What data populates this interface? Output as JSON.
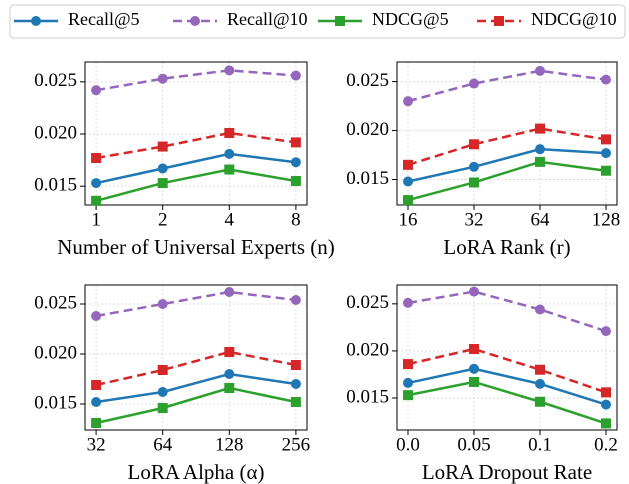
{
  "chart_data": [
    {
      "type": "line",
      "xlabel": "Number of Universal Experts (n)",
      "categories": [
        "1",
        "2",
        "4",
        "8"
      ],
      "series": [
        {
          "name": "Recall@5",
          "color": "#1f77b4",
          "linestyle": "solid",
          "marker": "circle",
          "values": [
            0.0153,
            0.0167,
            0.0181,
            0.0173
          ]
        },
        {
          "name": "Recall@10",
          "color": "#9467bd",
          "linestyle": "dashed",
          "marker": "circle",
          "values": [
            0.0242,
            0.0253,
            0.0261,
            0.0256
          ]
        },
        {
          "name": "NDCG@5",
          "color": "#2ca02c",
          "linestyle": "solid",
          "marker": "square",
          "values": [
            0.0136,
            0.0153,
            0.0166,
            0.0155
          ]
        },
        {
          "name": "NDCG@10",
          "color": "#d62728",
          "linestyle": "dashed",
          "marker": "square",
          "values": [
            0.0177,
            0.0188,
            0.0201,
            0.0192
          ]
        }
      ],
      "ylim": [
        0.0132,
        0.0269
      ],
      "yticks": [
        0.015,
        {
          "value": 0.02,
          "label": "0.020"
        },
        0.025
      ],
      "grid": true
    },
    {
      "type": "line",
      "xlabel": "LoRA Rank (r)",
      "categories": [
        "16",
        "32",
        "64",
        "128"
      ],
      "series": [
        {
          "name": "Recall@5",
          "color": "#1f77b4",
          "linestyle": "solid",
          "marker": "circle",
          "values": [
            0.0148,
            0.0163,
            0.0181,
            0.0177
          ]
        },
        {
          "name": "Recall@10",
          "color": "#9467bd",
          "linestyle": "dashed",
          "marker": "circle",
          "values": [
            0.023,
            0.0248,
            0.0261,
            0.0252
          ]
        },
        {
          "name": "NDCG@5",
          "color": "#2ca02c",
          "linestyle": "solid",
          "marker": "square",
          "values": [
            0.0129,
            0.0147,
            0.0168,
            0.0159
          ]
        },
        {
          "name": "NDCG@10",
          "color": "#d62728",
          "linestyle": "dashed",
          "marker": "square",
          "values": [
            0.0165,
            0.0186,
            0.0202,
            0.0191
          ]
        }
      ],
      "ylim": [
        0.0124,
        0.027
      ],
      "yticks": [
        0.015,
        {
          "value": 0.02,
          "label": "0.020"
        },
        0.025
      ],
      "grid": true
    },
    {
      "type": "line",
      "xlabel": "LoRA Alpha (α)",
      "categories": [
        "32",
        "64",
        "128",
        "256"
      ],
      "series": [
        {
          "name": "Recall@5",
          "color": "#1f77b4",
          "linestyle": "solid",
          "marker": "circle",
          "values": [
            0.0152,
            0.0162,
            0.018,
            0.017
          ]
        },
        {
          "name": "Recall@10",
          "color": "#9467bd",
          "linestyle": "dashed",
          "marker": "circle",
          "values": [
            0.0238,
            0.025,
            0.0262,
            0.0254
          ]
        },
        {
          "name": "NDCG@5",
          "color": "#2ca02c",
          "linestyle": "solid",
          "marker": "square",
          "values": [
            0.0131,
            0.0146,
            0.0166,
            0.0152
          ]
        },
        {
          "name": "NDCG@10",
          "color": "#d62728",
          "linestyle": "dashed",
          "marker": "square",
          "values": [
            0.0169,
            0.0184,
            0.0202,
            0.0189
          ]
        }
      ],
      "ylim": [
        0.0124,
        0.0269
      ],
      "yticks": [
        0.015,
        {
          "value": 0.02,
          "label": "0.020"
        },
        0.025
      ],
      "grid": true
    },
    {
      "type": "line",
      "xlabel": "LoRA Dropout Rate",
      "categories": [
        "0.0",
        "0.05",
        "0.1",
        "0.2"
      ],
      "series": [
        {
          "name": "Recall@5",
          "color": "#1f77b4",
          "linestyle": "solid",
          "marker": "circle",
          "values": [
            0.0166,
            0.0181,
            0.0165,
            0.0143
          ]
        },
        {
          "name": "Recall@10",
          "color": "#9467bd",
          "linestyle": "dashed",
          "marker": "circle",
          "values": [
            0.0251,
            0.0263,
            0.0244,
            0.0221
          ]
        },
        {
          "name": "NDCG@5",
          "color": "#2ca02c",
          "linestyle": "solid",
          "marker": "square",
          "values": [
            0.0153,
            0.0167,
            0.0146,
            0.0123
          ]
        },
        {
          "name": "NDCG@10",
          "color": "#d62728",
          "linestyle": "dashed",
          "marker": "square",
          "values": [
            0.0186,
            0.0202,
            0.018,
            0.0156
          ]
        }
      ],
      "ylim": [
        0.0116,
        0.027
      ],
      "yticks": [
        0.015,
        {
          "value": 0.02,
          "label": "0.020"
        },
        0.025
      ],
      "grid": true
    }
  ]
}
